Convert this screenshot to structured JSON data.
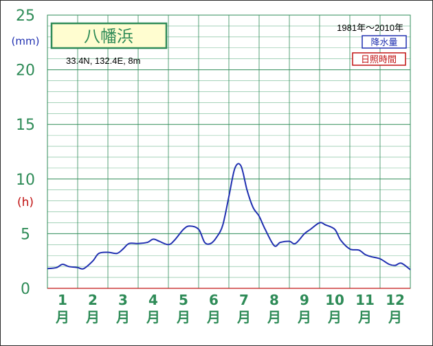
{
  "chart_data": {
    "type": "line",
    "title": "八幡浜",
    "location": "33.4N,  132.4E,  8m",
    "period": "1981年〜2010年",
    "legend": [
      "降水量",
      "日照時間"
    ],
    "units": {
      "primary": "(mm)",
      "secondary": "(h)"
    },
    "x_labels": [
      {
        "num": "1",
        "unit": "月"
      },
      {
        "num": "2",
        "unit": "月"
      },
      {
        "num": "3",
        "unit": "月"
      },
      {
        "num": "4",
        "unit": "月"
      },
      {
        "num": "5",
        "unit": "月"
      },
      {
        "num": "6",
        "unit": "月"
      },
      {
        "num": "7",
        "unit": "月"
      },
      {
        "num": "8",
        "unit": "月"
      },
      {
        "num": "9",
        "unit": "月"
      },
      {
        "num": "10",
        "unit": "月"
      },
      {
        "num": "11",
        "unit": "月"
      },
      {
        "num": "12",
        "unit": "月"
      }
    ],
    "ylim": [
      0,
      25
    ],
    "y_ticks": [
      "0",
      "5",
      "10",
      "15",
      "20",
      "25"
    ],
    "grid": true,
    "series": [
      {
        "name": "降水量",
        "color": "#1f2fb0",
        "x": [
          0.0,
          0.3,
          0.5,
          0.7,
          1.0,
          1.2,
          1.5,
          1.7,
          2.0,
          2.3,
          2.5,
          2.7,
          3.0,
          3.3,
          3.5,
          3.7,
          4.0,
          4.2,
          4.5,
          4.7,
          5.0,
          5.2,
          5.4,
          5.6,
          5.8,
          6.0,
          6.2,
          6.4,
          6.6,
          6.8,
          7.0,
          7.2,
          7.5,
          7.7,
          8.0,
          8.2,
          8.5,
          8.7,
          9.0,
          9.2,
          9.5,
          9.7,
          10.0,
          10.3,
          10.5,
          10.7,
          11.0,
          11.3,
          11.5,
          11.7,
          12.0
        ],
        "y": [
          1.8,
          1.9,
          2.2,
          2.0,
          1.9,
          1.8,
          2.5,
          3.2,
          3.3,
          3.2,
          3.6,
          4.1,
          4.1,
          4.2,
          4.5,
          4.3,
          4.0,
          4.4,
          5.4,
          5.7,
          5.4,
          4.2,
          4.1,
          4.7,
          5.8,
          8.4,
          11.0,
          11.2,
          9.0,
          7.4,
          6.6,
          5.4,
          3.9,
          4.2,
          4.3,
          4.1,
          5.0,
          5.4,
          6.0,
          5.8,
          5.4,
          4.4,
          3.6,
          3.5,
          3.1,
          2.9,
          2.7,
          2.2,
          2.1,
          2.3,
          1.7
        ]
      }
    ]
  }
}
